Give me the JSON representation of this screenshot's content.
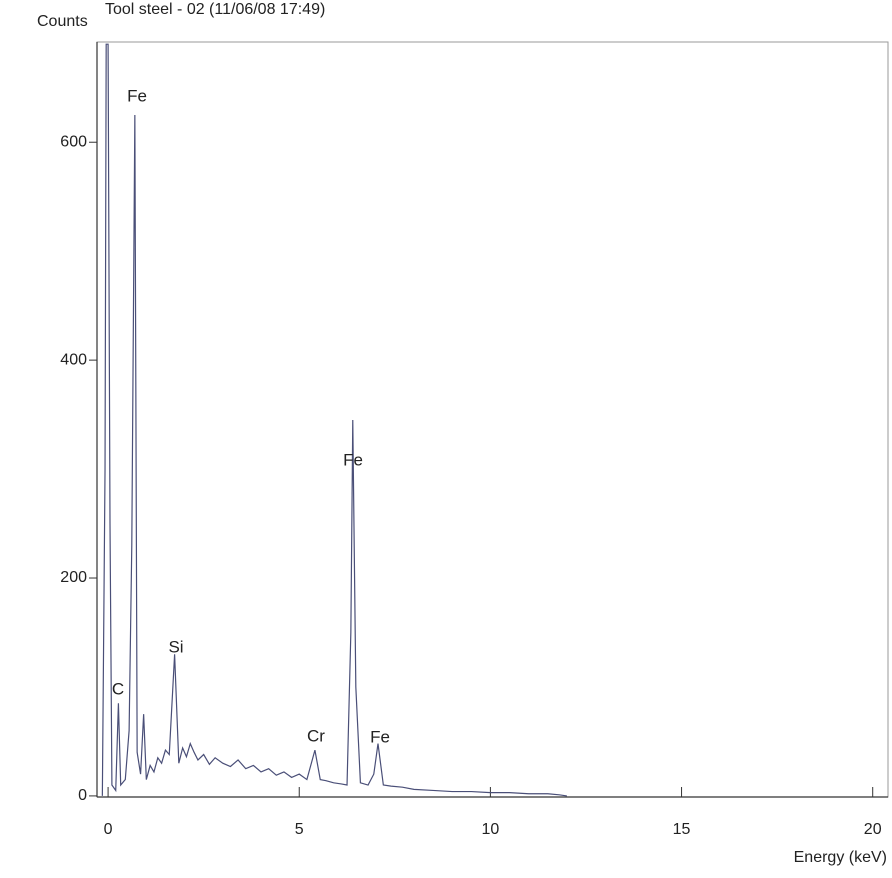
{
  "chart_data": {
    "type": "line",
    "title": "Tool steel - 02 (11/06/08 17:49)",
    "y_label": "Counts",
    "x_label": "Energy (keV)",
    "color": "#4a4f78",
    "x": [
      -0.15,
      -0.08,
      -0.05,
      0.0,
      0.05,
      0.1,
      0.2,
      0.27,
      0.33,
      0.45,
      0.55,
      0.62,
      0.7,
      0.76,
      0.85,
      0.93,
      1.0,
      1.1,
      1.2,
      1.3,
      1.4,
      1.5,
      1.6,
      1.74,
      1.85,
      1.95,
      2.05,
      2.15,
      2.25,
      2.35,
      2.5,
      2.65,
      2.8,
      3.0,
      3.2,
      3.4,
      3.6,
      3.8,
      4.0,
      4.2,
      4.4,
      4.6,
      4.8,
      5.0,
      5.2,
      5.41,
      5.55,
      5.7,
      5.9,
      6.1,
      6.25,
      6.35,
      6.4,
      6.48,
      6.6,
      6.8,
      6.95,
      7.06,
      7.2,
      7.4,
      7.7,
      8.0,
      8.5,
      9.0,
      9.5,
      10.0,
      10.5,
      11.0,
      11.5,
      11.8,
      12.0
    ],
    "values": [
      0,
      300,
      690,
      690,
      250,
      10,
      5,
      85,
      10,
      15,
      60,
      230,
      625,
      40,
      20,
      75,
      15,
      28,
      22,
      35,
      30,
      42,
      38,
      130,
      30,
      44,
      36,
      48,
      40,
      33,
      38,
      29,
      35,
      30,
      27,
      33,
      25,
      28,
      22,
      25,
      19,
      22,
      17,
      20,
      15,
      42,
      15,
      14,
      12,
      11,
      10,
      150,
      345,
      100,
      12,
      10,
      20,
      48,
      10,
      9,
      8,
      6,
      5,
      4,
      4,
      3,
      3,
      2,
      2,
      1,
      0
    ],
    "xlim": [
      -0.29,
      20.4
    ],
    "ylim": [
      -1,
      692
    ],
    "xticks": [
      0,
      5,
      10,
      15,
      20
    ],
    "yticks": [
      0,
      200,
      400,
      600
    ],
    "peak_labels": [
      "C",
      "Fe",
      "Si",
      "Fe",
      "Cr",
      "Fe"
    ]
  }
}
